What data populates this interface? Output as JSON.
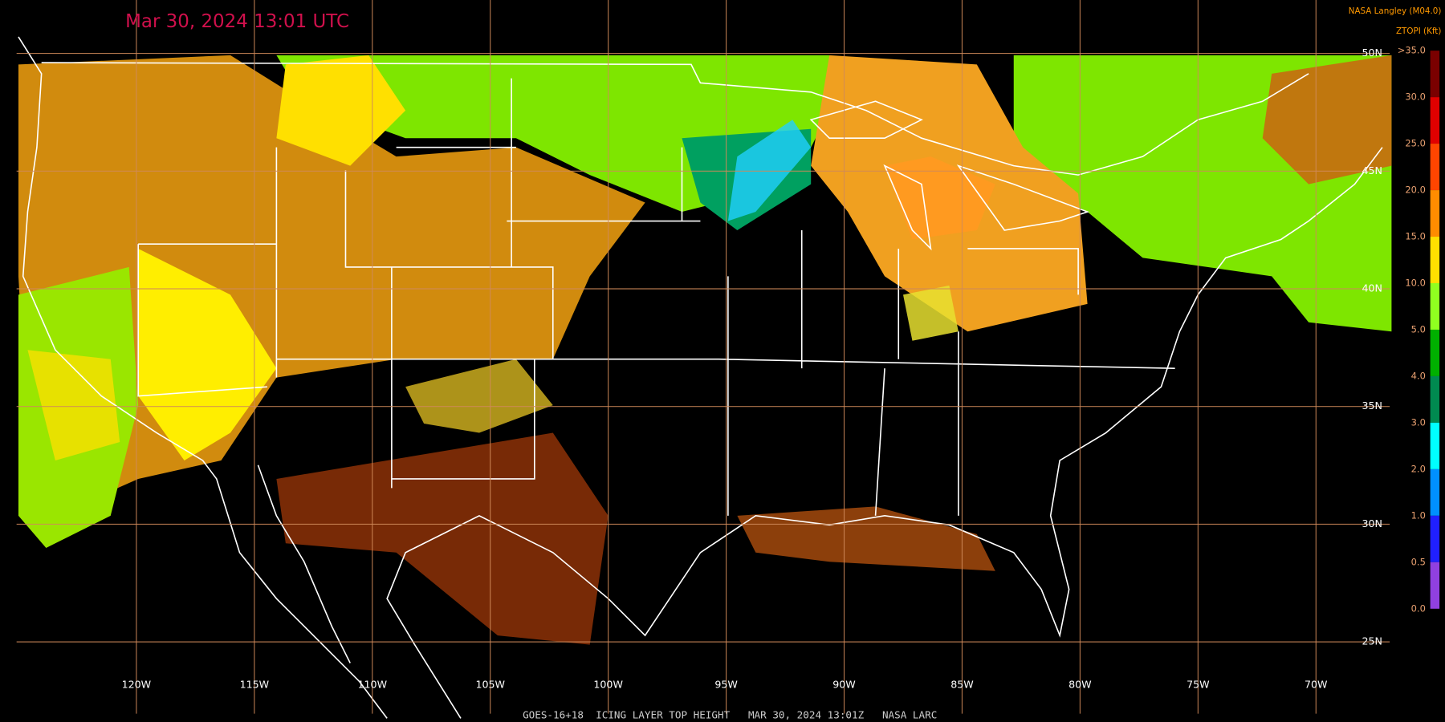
{
  "timestamp": "Mar 30, 2024 13:01 UTC",
  "credit": "NASA Langley (M04.0)",
  "colorbar": {
    "title": "ZTOPI (Kft)",
    "labels": [
      ">35.0",
      "30.0",
      "25.0",
      "20.0",
      "15.0",
      "10.0",
      "5.0",
      "4.0",
      "3.0",
      "2.0",
      "1.0",
      "0.5",
      "0.0"
    ]
  },
  "latitude_labels": [
    "50N",
    "45N",
    "40N",
    "35N",
    "30N",
    "25N"
  ],
  "longitude_labels": [
    "120W",
    "115W",
    "110W",
    "105W",
    "100W",
    "95W",
    "90W",
    "85W",
    "80W",
    "75W",
    "70W"
  ],
  "caption": "GOES-16+18  ICING LAYER TOP HEIGHT   MAR 30, 2024 13:01Z   NASA LARC"
}
